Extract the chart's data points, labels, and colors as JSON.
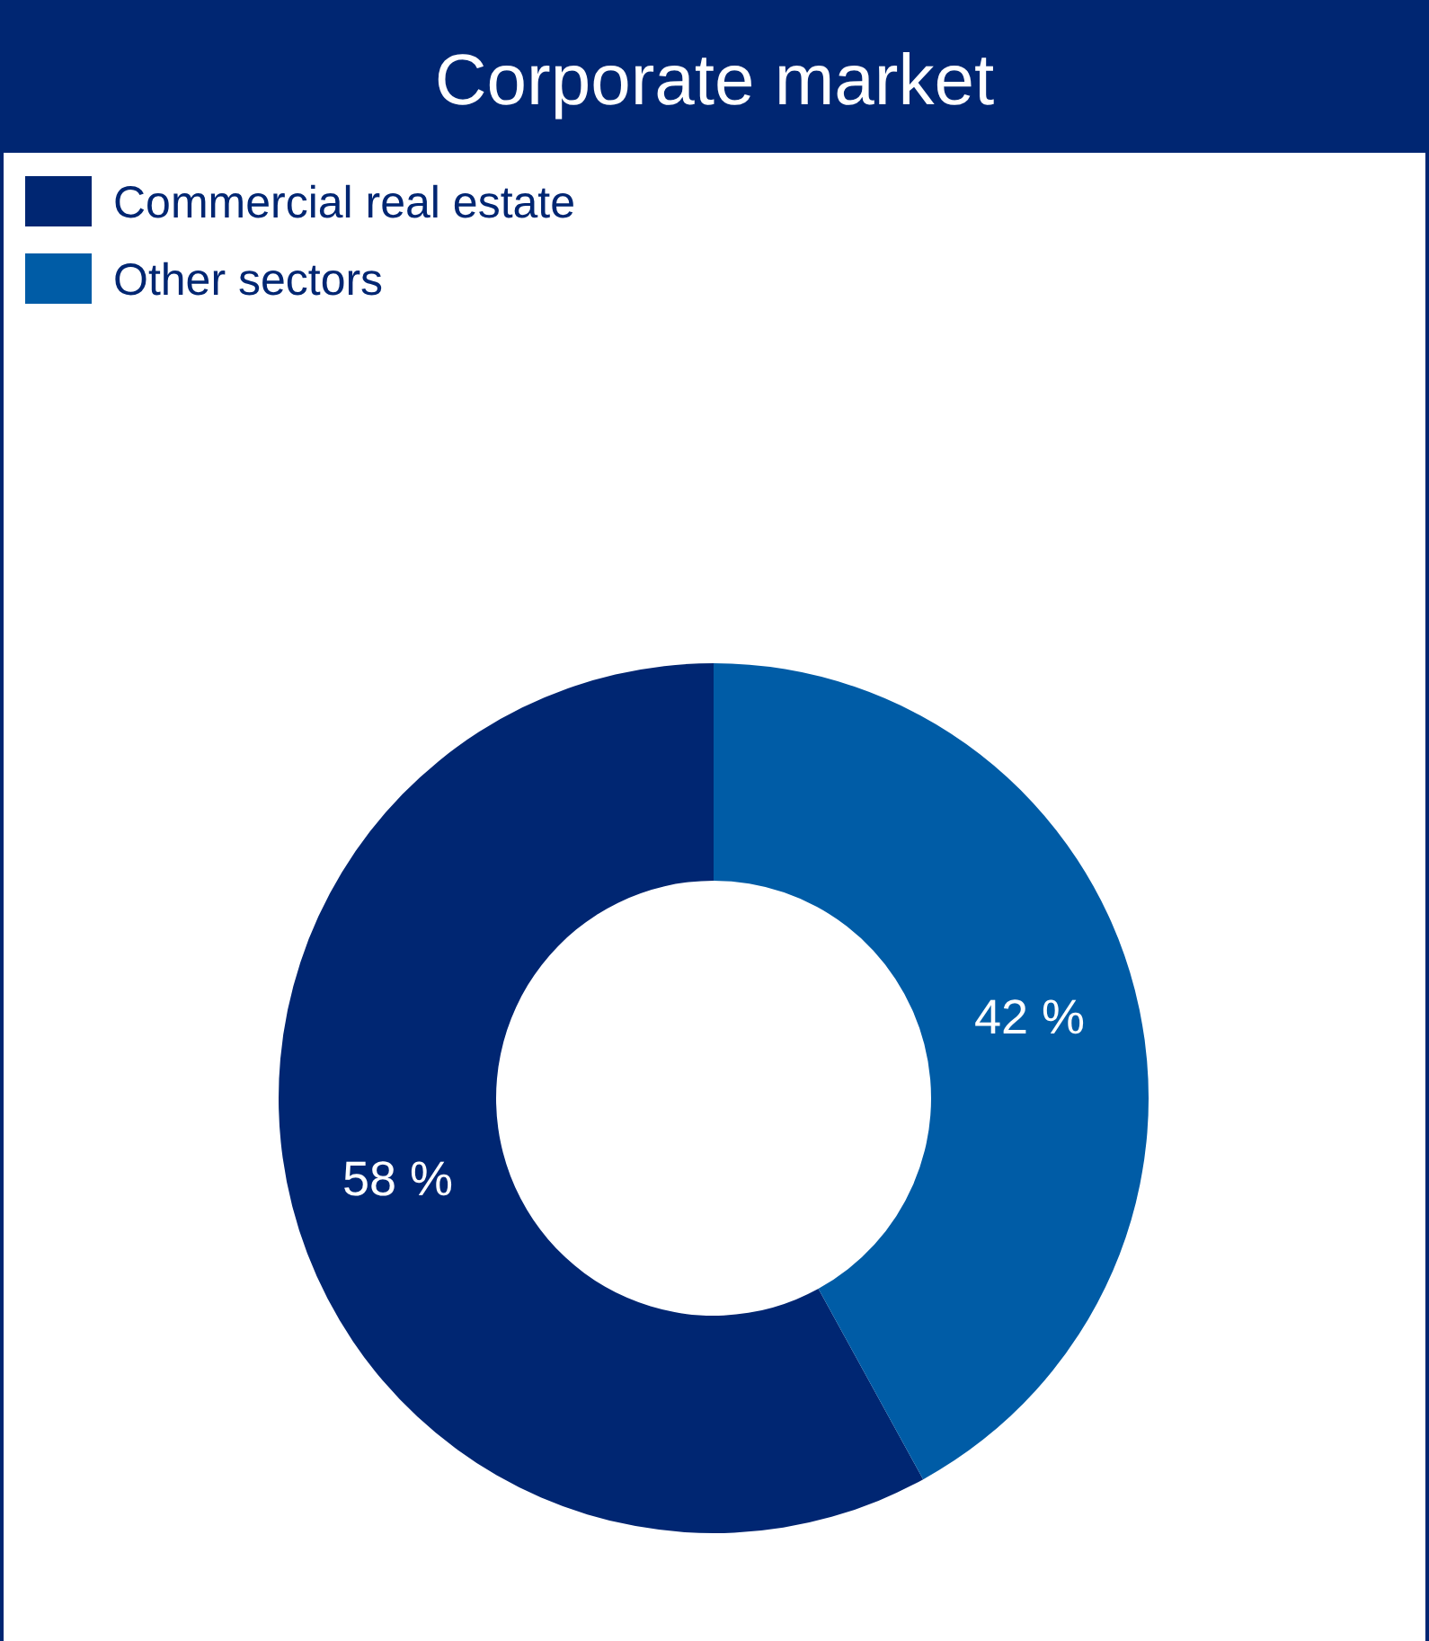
{
  "chart_data": {
    "type": "donut",
    "title": "Corporate market",
    "categories": [
      "Commercial real estate",
      "Other sectors"
    ],
    "values": [
      58,
      42
    ],
    "colors": [
      "#002672",
      "#005ca6"
    ],
    "value_labels": [
      "58 %",
      "42 %"
    ],
    "legend": "top left"
  }
}
